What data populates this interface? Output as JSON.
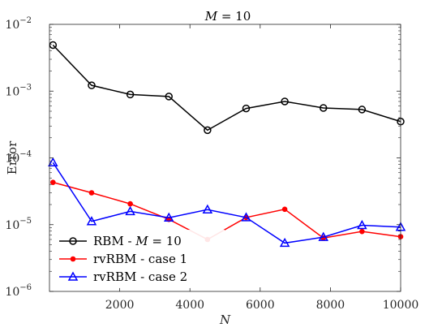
{
  "chart_data": {
    "type": "line",
    "title": "M = 10",
    "title_parts": {
      "var": "M",
      "rest": " = 10"
    },
    "xlabel": "N",
    "ylabel": "Error",
    "xlim": [
      0,
      10000
    ],
    "ylim": [
      1e-06,
      0.01
    ],
    "yscale": "log",
    "x_ticks": [
      2000,
      4000,
      6000,
      8000,
      10000
    ],
    "x_tick_labels": [
      "2000",
      "4000",
      "6000",
      "8000",
      "10000"
    ],
    "y_ticks": [
      {
        "value": 1e-06,
        "base": "10",
        "exp": "−6"
      },
      {
        "value": 1e-05,
        "base": "10",
        "exp": "−5"
      },
      {
        "value": 0.0001,
        "base": "10",
        "exp": "−4"
      },
      {
        "value": 0.001,
        "base": "10",
        "exp": "−3"
      },
      {
        "value": 0.01,
        "base": "10",
        "exp": "−2"
      }
    ],
    "legend_position": "bottom-left",
    "x": [
      100,
      1200,
      2300,
      3400,
      4500,
      5600,
      6700,
      7800,
      8900,
      10000
    ],
    "series": [
      {
        "name": "RBM - M = 10",
        "legend_parts": {
          "pre": "RBM - ",
          "var": "M",
          "post": " = 10"
        },
        "color": "#000000",
        "marker": "circle-open",
        "values": [
          0.0049,
          0.00122,
          0.00089,
          0.00083,
          0.00026,
          0.00055,
          0.0007,
          0.00056,
          0.00053,
          0.00035
        ]
      },
      {
        "name": "rvRBM - case 1",
        "legend_parts": {
          "pre": "rvRBM - case 1",
          "var": "",
          "post": ""
        },
        "color": "#ff0000",
        "marker": "dot-filled",
        "values": [
          4.3e-05,
          3e-05,
          2.05e-05,
          1.2e-05,
          6e-06,
          1.28e-05,
          1.7e-05,
          6.3e-06,
          7.9e-06,
          6.6e-06
        ]
      },
      {
        "name": "rvRBM - case 2",
        "legend_parts": {
          "pre": "rvRBM - case 2",
          "var": "",
          "post": ""
        },
        "color": "#0000ff",
        "marker": "triangle",
        "values": [
          8.5e-05,
          1.12e-05,
          1.58e-05,
          1.27e-05,
          1.68e-05,
          1.28e-05,
          5.3e-06,
          6.5e-06,
          9.8e-06,
          9.2e-06
        ]
      }
    ]
  }
}
